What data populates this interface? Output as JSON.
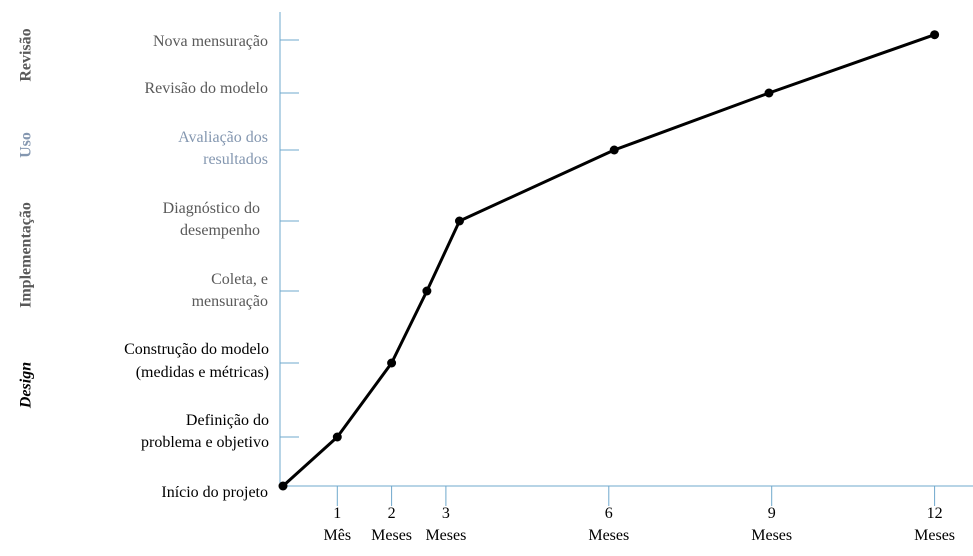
{
  "chart_data": {
    "type": "line",
    "x_ticks": [
      {
        "value": 1,
        "number": "1",
        "unit": "Mês"
      },
      {
        "value": 2,
        "number": "2",
        "unit": "Meses"
      },
      {
        "value": 3,
        "number": "3",
        "unit": "Meses"
      },
      {
        "value": 6,
        "number": "6",
        "unit": "Meses"
      },
      {
        "value": 9,
        "number": "9",
        "unit": "Meses"
      },
      {
        "value": 12,
        "number": "12",
        "unit": "Meses"
      }
    ],
    "stages": [
      {
        "lines": [
          "Início do projeto"
        ],
        "color": "#000000"
      },
      {
        "lines": [
          "Definição do",
          "problema e objetivo"
        ],
        "color": "#000000"
      },
      {
        "lines": [
          "Construção do modelo",
          "(medidas e métricas)"
        ],
        "color": "#000000"
      },
      {
        "lines": [
          "Coleta, e",
          "mensuração"
        ],
        "color": "#595959"
      },
      {
        "lines": [
          "Diagnóstico do",
          "desempenho"
        ],
        "color": "#595959"
      },
      {
        "lines": [
          "Avaliação dos",
          "resultados"
        ],
        "color": "#8497b0"
      },
      {
        "lines": [
          "Revisão do modelo"
        ],
        "color": "#595959"
      },
      {
        "lines": [
          "Nova mensuração"
        ],
        "color": "#595959"
      }
    ],
    "phases": [
      {
        "label": "Design",
        "color": "#000000",
        "italic": true
      },
      {
        "label": "Implementação",
        "color": "#595959",
        "italic": false
      },
      {
        "label": "Uso",
        "color": "#8497b0",
        "italic": false
      },
      {
        "label": "Revisão",
        "color": "#595959",
        "italic": false
      }
    ],
    "series": [
      {
        "points": [
          {
            "x": 0,
            "stage": 0
          },
          {
            "x": 1,
            "stage": 1
          },
          {
            "x": 2,
            "stage": 2
          },
          {
            "x": 2.65,
            "stage": 3
          },
          {
            "x": 3.25,
            "stage": 4
          },
          {
            "x": 6.1,
            "stage": 5
          },
          {
            "x": 8.95,
            "stage": 6
          },
          {
            "x": 12,
            "stage": 7.1
          }
        ]
      }
    ],
    "xlim": [
      0,
      12.7
    ],
    "grid": false
  }
}
